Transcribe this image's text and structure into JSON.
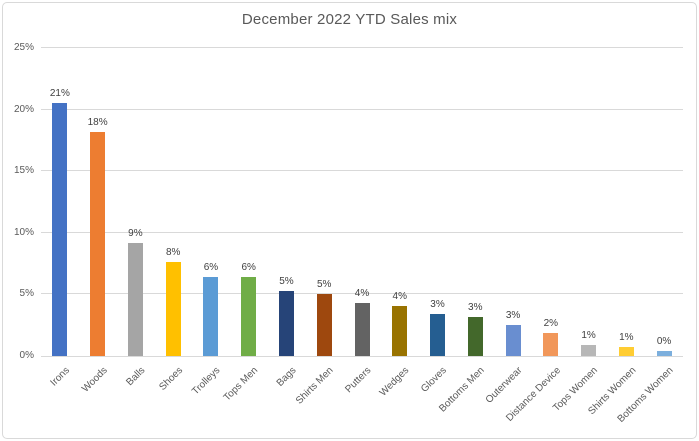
{
  "chart_data": {
    "type": "bar",
    "title": "December 2022 YTD Sales mix",
    "categories": [
      "Irons",
      "Woods",
      "Balls",
      "Shoes",
      "Trolleys",
      "Tops Men",
      "Bags",
      "Shirts Men",
      "Putters",
      "Wedges",
      "Gloves",
      "Bottoms Men",
      "Outerwear",
      "Distance Device",
      "Tops Women",
      "Shirts Women",
      "Bottoms Women"
    ],
    "values": [
      20.5,
      18.2,
      9.2,
      7.6,
      6.4,
      6.4,
      5.3,
      5.0,
      4.3,
      4.1,
      3.4,
      3.2,
      2.5,
      1.9,
      0.9,
      0.7,
      0.4
    ],
    "data_labels": [
      "21%",
      "18%",
      "9%",
      "8%",
      "6%",
      "6%",
      "5%",
      "5%",
      "4%",
      "4%",
      "3%",
      "3%",
      "3%",
      "2%",
      "1%",
      "1%",
      "0%"
    ],
    "bar_colors": [
      "#4472C4",
      "#ED7D31",
      "#A5A5A5",
      "#FFC000",
      "#5B9BD5",
      "#70AD47",
      "#264478",
      "#9E480E",
      "#636363",
      "#997300",
      "#255E91",
      "#43682B",
      "#698ED0",
      "#F1975A",
      "#B7B7B7",
      "#FFCD33",
      "#7CAFDD"
    ],
    "xlabel": "",
    "ylabel": "",
    "ylim": [
      0,
      25
    ],
    "yticks": [
      "0%",
      "5%",
      "10%",
      "15%",
      "20%",
      "25%"
    ],
    "grid": true,
    "legend": false,
    "gridline_color": "#D9D9D9",
    "title_color": "#595959",
    "axis_label_color": "#595959",
    "data_label_color": "#404040",
    "background_color": "#FFFFFF"
  }
}
